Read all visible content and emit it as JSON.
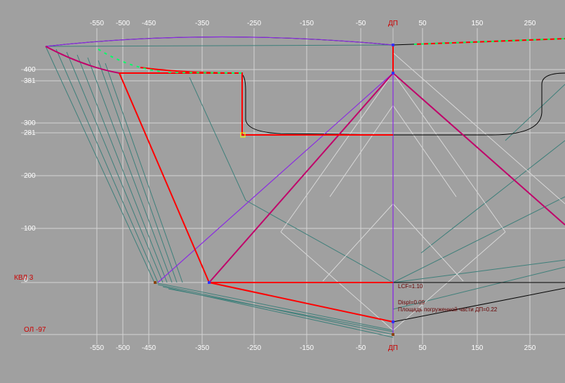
{
  "colors": {
    "background": "#a0a0a0",
    "grid": "#d4d4d4",
    "teal_lines": "#3d7f7a",
    "red_contour": "#ff0000",
    "purple_lines": "#8a2be2",
    "magenta_lines": "#c0006a",
    "label_red": "#cc0000",
    "annotation_dark": "#660000",
    "axis_labels": "#ffffff",
    "green_marks": "#00ff66"
  },
  "axis": {
    "x_ticks_top": [
      "-550",
      "-500",
      "-450",
      "-350",
      "-250",
      "-150",
      "-50",
      "ДП",
      "50",
      "150",
      "250"
    ],
    "x_ticks_bottom": [
      "-550",
      "-500",
      "-450",
      "-350",
      "-250",
      "-150",
      "-50",
      "ДП",
      "50",
      "150",
      "250"
    ],
    "y_ticks": [
      "400",
      "381",
      "300",
      "281",
      "200",
      "100",
      "0"
    ]
  },
  "labels": {
    "waterline": "КВЛ 3",
    "baseline": "ОЛ -97",
    "lcf": "LCF=1.10",
    "displ": "Displ=0.09",
    "area": "Площадь погруженной части ДП=0.22"
  }
}
